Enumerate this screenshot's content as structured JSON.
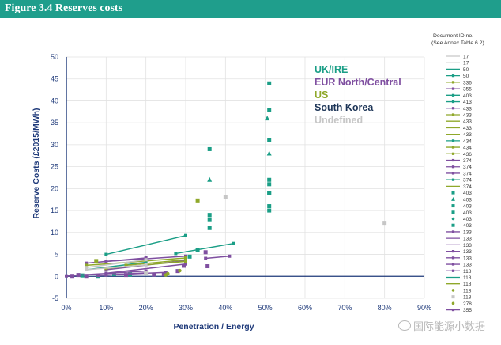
{
  "figure_title": "Figure 3.4 Reserves costs",
  "watermark": "国际能源小数据",
  "colors": {
    "header": "#1f9e8c",
    "uk": "#1a9e86",
    "eur": "#7f4fa0",
    "us": "#8fa82a",
    "korea": "#1d3557",
    "undefined": "#c6c6c6",
    "axis": "#1f3a7a"
  },
  "chart_data": {
    "type": "scatter",
    "xlabel": "Penetration / Energy",
    "ylabel": "Reserve Costs (£2015/MWh)",
    "xlim": [
      0,
      0.9
    ],
    "ylim": [
      -5,
      50
    ],
    "x_ticks": [
      "0%",
      "10%",
      "20%",
      "30%",
      "40%",
      "50%",
      "60%",
      "70%",
      "80%",
      "90%"
    ],
    "y_ticks": [
      "-5",
      "0",
      "5",
      "10",
      "15",
      "20",
      "25",
      "30",
      "35",
      "40",
      "45",
      "50"
    ],
    "groups": [
      {
        "name": "UK/IRE",
        "color": "#1a9e86"
      },
      {
        "name": "EUR North/Central",
        "color": "#7f4fa0"
      },
      {
        "name": "US",
        "color": "#8fa82a"
      },
      {
        "name": "South Korea",
        "color": "#1d3557"
      },
      {
        "name": "Undefined",
        "color": "#c6c6c6"
      }
    ],
    "legend_title": [
      "Document ID no.",
      "(See Annex Table 6.2)"
    ],
    "legend_entries": [
      {
        "label": "17",
        "marker": "line",
        "color": "#c6c6c6"
      },
      {
        "label": "17",
        "marker": "line",
        "color": "#c6c6c6"
      },
      {
        "label": "50",
        "marker": "line",
        "color": "#1a9e86"
      },
      {
        "label": "50",
        "marker": "line-square",
        "color": "#1a9e86"
      },
      {
        "label": "336",
        "marker": "line-square",
        "color": "#8fa82a"
      },
      {
        "label": "355",
        "marker": "line-square",
        "color": "#7f4fa0"
      },
      {
        "label": "403",
        "marker": "line-square",
        "color": "#1a9e86"
      },
      {
        "label": "413",
        "marker": "line-square",
        "color": "#1a9e86"
      },
      {
        "label": "433",
        "marker": "line-square",
        "color": "#7f4fa0"
      },
      {
        "label": "433",
        "marker": "line-square",
        "color": "#8fa82a"
      },
      {
        "label": "433",
        "marker": "line",
        "color": "#8fa82a"
      },
      {
        "label": "433",
        "marker": "line",
        "color": "#8fa82a"
      },
      {
        "label": "433",
        "marker": "line",
        "color": "#8fa82a"
      },
      {
        "label": "434",
        "marker": "line-square",
        "color": "#1a9e86"
      },
      {
        "label": "434",
        "marker": "line-square",
        "color": "#8fa82a"
      },
      {
        "label": "436",
        "marker": "line-square",
        "color": "#8fa82a"
      },
      {
        "label": "374",
        "marker": "line-square",
        "color": "#7f4fa0"
      },
      {
        "label": "374",
        "marker": "line-square",
        "color": "#7f4fa0"
      },
      {
        "label": "374",
        "marker": "line-square",
        "color": "#7f4fa0"
      },
      {
        "label": "374",
        "marker": "line-square",
        "color": "#1a9e86"
      },
      {
        "label": "374",
        "marker": "line",
        "color": "#8fa82a"
      },
      {
        "label": "403",
        "marker": "square",
        "color": "#1a9e86"
      },
      {
        "label": "403",
        "marker": "triangle",
        "color": "#1a9e86"
      },
      {
        "label": "403",
        "marker": "square",
        "color": "#1a9e86"
      },
      {
        "label": "403",
        "marker": "square",
        "color": "#1a9e86"
      },
      {
        "label": "403",
        "marker": "dot",
        "color": "#1a9e86"
      },
      {
        "label": "403",
        "marker": "square",
        "color": "#1a9e86"
      },
      {
        "label": "133",
        "marker": "line-square",
        "color": "#7f4fa0"
      },
      {
        "label": "133",
        "marker": "line",
        "color": "#7f4fa0"
      },
      {
        "label": "133",
        "marker": "line",
        "color": "#7f4fa0"
      },
      {
        "label": "133",
        "marker": "line-square",
        "color": "#7f4fa0"
      },
      {
        "label": "133",
        "marker": "line-square",
        "color": "#7f4fa0"
      },
      {
        "label": "133",
        "marker": "line-square",
        "color": "#7f4fa0"
      },
      {
        "label": "118",
        "marker": "line-square",
        "color": "#7f4fa0"
      },
      {
        "label": "118",
        "marker": "line",
        "color": "#1a9e86"
      },
      {
        "label": "118",
        "marker": "line",
        "color": "#8fa82a"
      },
      {
        "label": "118",
        "marker": "dot",
        "color": "#8fa82a"
      },
      {
        "label": "118",
        "marker": "square",
        "color": "#c6c6c6"
      },
      {
        "label": "278",
        "marker": "dot",
        "color": "#8fa82a"
      },
      {
        "label": "355",
        "marker": "line-square",
        "color": "#7f4fa0"
      }
    ],
    "series": [
      {
        "group": "UK/IRE",
        "marker": "square",
        "x": [
          0.51,
          0.51,
          0.51,
          0.51,
          0.51,
          0.51,
          0.51,
          0.51,
          0.51,
          0.36,
          0.36,
          0.36,
          0.36
        ],
        "y": [
          44,
          38,
          31,
          22,
          21,
          19,
          16,
          15,
          19,
          29,
          14,
          13,
          11
        ]
      },
      {
        "group": "UK/IRE",
        "marker": "triangle",
        "x": [
          0.505,
          0.51,
          0.36
        ],
        "y": [
          36,
          28,
          22
        ]
      },
      {
        "group": "UK/IRE",
        "marker": "line",
        "x": [
          0.1,
          0.3
        ],
        "y": [
          5,
          9.3
        ]
      },
      {
        "group": "UK/IRE",
        "marker": "line",
        "x": [
          0.275,
          0.42
        ],
        "y": [
          5.2,
          7.5
        ]
      },
      {
        "group": "UK/IRE",
        "marker": "line",
        "x": [
          0.05,
          0.2
        ],
        "y": [
          1.5,
          3.2
        ]
      },
      {
        "group": "UK/IRE",
        "marker": "square",
        "x": [
          0.31,
          0.33,
          0.04,
          0.08,
          0.12,
          0.16
        ],
        "y": [
          4.5,
          6,
          0.2,
          0.1,
          0.5,
          0.4
        ]
      },
      {
        "group": "EUR North/Central",
        "marker": "line",
        "x": [
          0.05,
          0.2
        ],
        "y": [
          3,
          4.2
        ]
      },
      {
        "group": "EUR North/Central",
        "marker": "line",
        "x": [
          0.1,
          0.3
        ],
        "y": [
          3.4,
          4.6
        ]
      },
      {
        "group": "EUR North/Central",
        "marker": "line",
        "x": [
          0.35,
          0.41
        ],
        "y": [
          4.1,
          4.6
        ]
      },
      {
        "group": "EUR North/Central",
        "marker": "line",
        "x": [
          0.1,
          0.3
        ],
        "y": [
          1.5,
          3.6
        ]
      },
      {
        "group": "EUR North/Central",
        "marker": "line",
        "x": [
          0.1,
          0.3
        ],
        "y": [
          0.7,
          2.8
        ]
      },
      {
        "group": "EUR North/Central",
        "marker": "line",
        "x": [
          0.0,
          0.2
        ],
        "y": [
          0.1,
          1.2
        ]
      },
      {
        "group": "EUR North/Central",
        "marker": "line",
        "x": [
          0.08,
          0.25
        ],
        "y": [
          0.2,
          0.9
        ]
      },
      {
        "group": "EUR North/Central",
        "marker": "line",
        "x": [
          0.1,
          0.2
        ],
        "y": [
          0.3,
          0.8
        ]
      },
      {
        "group": "EUR North/Central",
        "marker": "square",
        "x": [
          0.35,
          0.355,
          0.28,
          0.295,
          0.015,
          0.03,
          0.05,
          0.15,
          0.22,
          0.245
        ],
        "y": [
          5.5,
          2.3,
          1.2,
          2.4,
          0.1,
          0.3,
          0.1,
          0.3,
          0.4,
          0.5
        ]
      },
      {
        "group": "US",
        "marker": "square",
        "x": [
          0.33,
          0.075
        ],
        "y": [
          17.3,
          3.5
        ]
      },
      {
        "group": "US",
        "marker": "line",
        "x": [
          0.05,
          0.3
        ],
        "y": [
          2.5,
          4.2
        ]
      },
      {
        "group": "US",
        "marker": "line",
        "x": [
          0.1,
          0.3
        ],
        "y": [
          1.8,
          3.4
        ]
      },
      {
        "group": "US",
        "marker": "line",
        "x": [
          0.15,
          0.3
        ],
        "y": [
          2.5,
          3.8
        ]
      },
      {
        "group": "US",
        "marker": "dot",
        "x": [
          0.25,
          0.255,
          0.285
        ],
        "y": [
          0.3,
          0.6,
          1.3
        ]
      },
      {
        "group": "Undefined",
        "marker": "square",
        "x": [
          0.4,
          0.8,
          0.2
        ],
        "y": [
          18,
          12.2,
          0.8
        ]
      },
      {
        "group": "Undefined",
        "marker": "line",
        "x": [
          0.05,
          0.2
        ],
        "y": [
          2,
          3.8
        ]
      },
      {
        "group": "Undefined",
        "marker": "line",
        "x": [
          0.05,
          0.2
        ],
        "y": [
          1.5,
          2.6
        ]
      }
    ]
  }
}
